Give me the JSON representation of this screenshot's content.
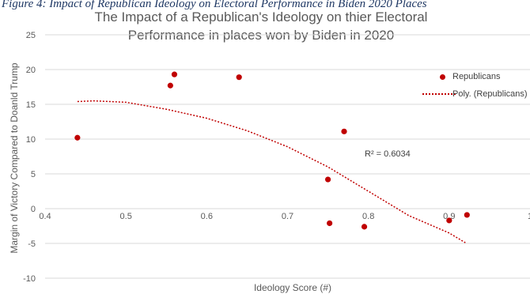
{
  "caption": "Figure 4: Impact of Republican Ideology on Electoral Performance in Biden 2020 Places",
  "chart_data": {
    "type": "scatter",
    "title": "The Impact of a Republican's Ideology on thier Electoral Performance in places won by Biden in 2020",
    "xlabel": "Ideology Score (#)",
    "ylabel": "Margin of Victory Compared to Doanld Trump",
    "xlim": [
      0.4,
      1
    ],
    "ylim": [
      -10,
      25
    ],
    "x_ticks": [
      "0.4",
      "0.5",
      "0.6",
      "0.7",
      "0.8",
      "0.9",
      "1"
    ],
    "y_ticks": [
      "-10",
      "-5",
      "0",
      "5",
      "10",
      "15",
      "20",
      "25"
    ],
    "grid": true,
    "legend_position": "right",
    "series": [
      {
        "name": "Republicans",
        "marker": "circle",
        "color": "#c00000",
        "x": [
          0.44,
          0.555,
          0.56,
          0.64,
          0.75,
          0.752,
          0.77,
          0.795,
          0.9,
          0.922
        ],
        "y": [
          10.2,
          17.7,
          19.3,
          18.9,
          4.2,
          -2.1,
          11.1,
          -2.6,
          -1.7,
          -0.9
        ]
      }
    ],
    "trendline": {
      "name": "Poly. (Republicans)",
      "style": "dotted",
      "color": "#c00000",
      "x": [
        0.44,
        0.46,
        0.5,
        0.55,
        0.6,
        0.65,
        0.7,
        0.75,
        0.8,
        0.85,
        0.9,
        0.92
      ],
      "y": [
        15.4,
        15.5,
        15.3,
        14.3,
        13.0,
        11.2,
        8.9,
        6.0,
        2.5,
        -1.0,
        -3.5,
        -4.9
      ]
    },
    "annotation": "R² = 0.6034"
  }
}
